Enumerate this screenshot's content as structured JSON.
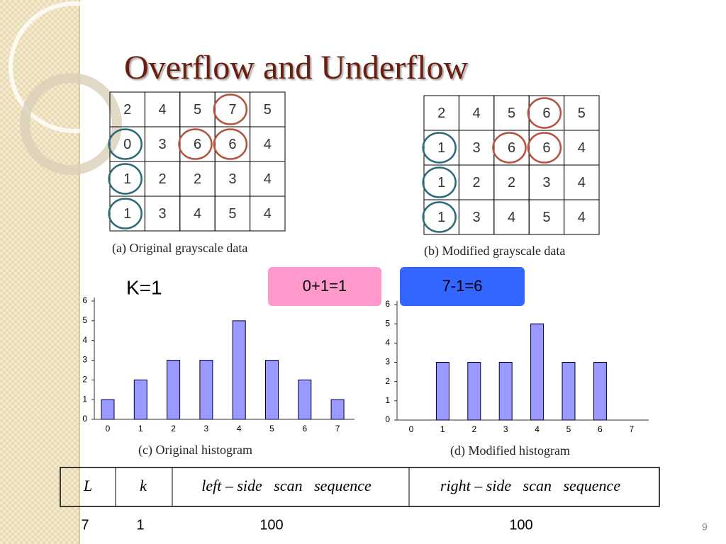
{
  "title": "Overflow and Underflow",
  "table_a": {
    "rows": [
      [
        2,
        4,
        5,
        7,
        5
      ],
      [
        0,
        3,
        6,
        6,
        4
      ],
      [
        1,
        2,
        2,
        3,
        4
      ],
      [
        1,
        3,
        4,
        5,
        4
      ]
    ],
    "caption": "(a) Original grayscale data"
  },
  "table_b": {
    "rows": [
      [
        2,
        4,
        5,
        6,
        5
      ],
      [
        1,
        3,
        6,
        6,
        4
      ],
      [
        1,
        2,
        2,
        3,
        4
      ],
      [
        1,
        3,
        4,
        5,
        4
      ]
    ],
    "caption": "(b) Modified grayscale data"
  },
  "k_label": "K=1",
  "boxes": [
    "0+1=1",
    "7-1=6"
  ],
  "chart_data": [
    {
      "type": "bar",
      "caption": "(c) Original histogram",
      "categories": [
        "0",
        "1",
        "2",
        "3",
        "4",
        "5",
        "6",
        "7"
      ],
      "values": [
        1,
        2,
        3,
        3,
        5,
        3,
        2,
        1
      ],
      "color": "#9999ff",
      "ylim": [
        0,
        6
      ],
      "yticks": [
        0,
        1,
        2,
        3,
        4,
        5,
        6
      ]
    },
    {
      "type": "bar",
      "caption": "(d) Modified histogram",
      "categories": [
        "0",
        "1",
        "2",
        "3",
        "4",
        "5",
        "6",
        "7"
      ],
      "values": [
        0,
        3,
        3,
        3,
        5,
        3,
        3,
        0
      ],
      "color": "#9999ff",
      "ylim": [
        0,
        6
      ],
      "yticks": [
        0,
        1,
        2,
        3,
        4,
        5,
        6
      ]
    }
  ],
  "scan_table": {
    "header": [
      "L",
      "k",
      "left – side   scan   sequence",
      "right – side   scan   sequence"
    ],
    "row": [
      7,
      1,
      100,
      100
    ]
  },
  "page_number": "9"
}
